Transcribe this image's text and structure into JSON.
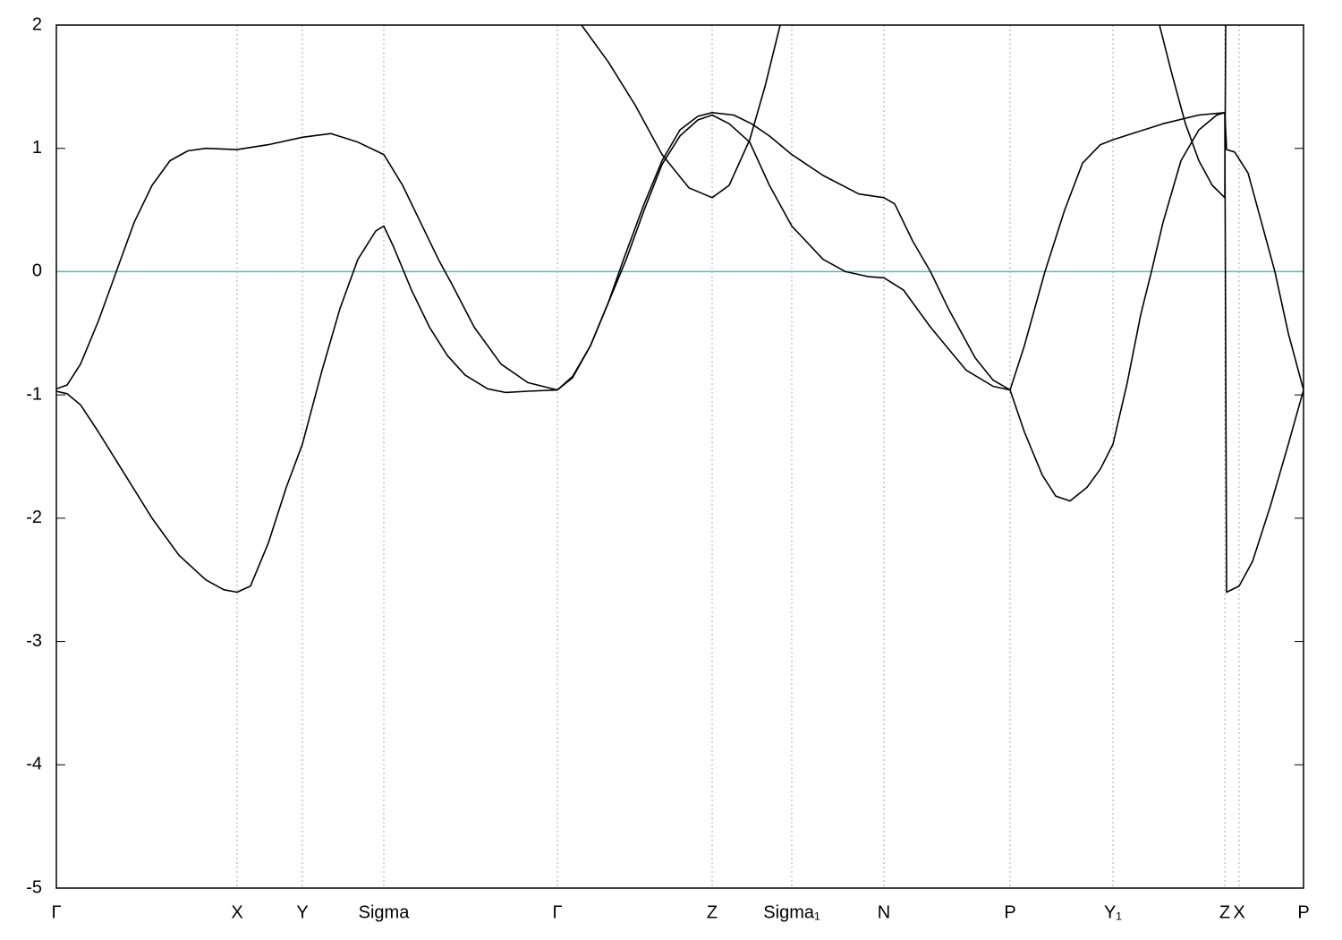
{
  "chart_data": {
    "type": "line",
    "xlim": [
      0,
      1394
    ],
    "ylim": [
      -5,
      2
    ],
    "yticks": [
      -5,
      -4,
      -3,
      -2,
      -1,
      0,
      1,
      2
    ],
    "xticks": [
      {
        "value": 0,
        "label": "Γ"
      },
      {
        "value": 202,
        "label": "X"
      },
      {
        "value": 275,
        "label": "Y"
      },
      {
        "value": 366,
        "label": "Sigma"
      },
      {
        "value": 560,
        "label": "Γ"
      },
      {
        "value": 733,
        "label": "Z"
      },
      {
        "value": 822,
        "label": "Sigma₁"
      },
      {
        "value": 925,
        "label": "N"
      },
      {
        "value": 1066,
        "label": "P"
      },
      {
        "value": 1181,
        "label": "Y₁"
      },
      {
        "value": 1306,
        "label": "Z"
      },
      {
        "value": 1322,
        "label": "X"
      },
      {
        "value": 1394,
        "label": "P"
      }
    ],
    "grid": true,
    "hline": {
      "value": 0,
      "color": "#5bb5c8"
    },
    "series": [
      {
        "color": "#000000",
        "x": [
          0,
          12,
          27,
          47,
          77,
          107,
          137,
          167,
          187,
          202,
          217,
          237,
          257,
          275,
          297,
          317,
          337,
          357,
          366,
          377,
          397,
          417,
          437,
          457,
          482,
          502,
          527,
          560,
          577,
          597,
          617,
          637,
          657,
          677,
          697,
          717,
          733,
          752,
          775,
          797,
          822,
          857,
          882,
          907,
          925,
          947,
          977,
          1017,
          1047,
          1066,
          1082,
          1102,
          1117,
          1133,
          1152,
          1167,
          1181,
          1197,
          1212,
          1224,
          1237,
          1257,
          1277,
          1297,
          1306,
          1308,
          1322,
          1337,
          1357,
          1377,
          1394
        ],
        "values": [
          -0.97,
          -0.99,
          -1.08,
          -1.3,
          -1.65,
          -2.0,
          -2.3,
          -2.5,
          -2.58,
          -2.6,
          -2.55,
          -2.2,
          -1.75,
          -1.4,
          -0.8,
          -0.3,
          0.1,
          0.33,
          0.37,
          0.2,
          -0.15,
          -0.45,
          -0.68,
          -0.84,
          -0.95,
          -0.98,
          -0.97,
          -0.96,
          -0.85,
          -0.6,
          -0.25,
          0.1,
          0.5,
          0.87,
          1.1,
          1.23,
          1.27,
          1.2,
          1.05,
          0.7,
          0.37,
          0.1,
          0,
          -0.04,
          -0.05,
          -0.15,
          -0.45,
          -0.8,
          -0.93,
          -0.96,
          -1.3,
          -1.65,
          -1.82,
          -1.86,
          -1.75,
          -1.6,
          -1.4,
          -0.9,
          -0.35,
          0,
          0.4,
          0.9,
          1.15,
          1.27,
          1.29,
          -2.6,
          -2.55,
          -2.35,
          -1.9,
          -1.4,
          -0.96
        ]
      },
      {
        "color": "#000000",
        "x": [
          0,
          12,
          27,
          47,
          67,
          87,
          107,
          127,
          147,
          167,
          202,
          237,
          275,
          307,
          337,
          366,
          387,
          407,
          427,
          442,
          467,
          497,
          527,
          560,
          577,
          597,
          617,
          634,
          657,
          677,
          697,
          717,
          733,
          757,
          777,
          797,
          822,
          857,
          897,
          925,
          937,
          957,
          977,
          997,
          1027,
          1047,
          1066,
          1082,
          1105,
          1127,
          1147,
          1167,
          1181,
          1207,
          1237,
          1277,
          1306,
          1308,
          1317,
          1332,
          1347,
          1362,
          1377,
          1394
        ],
        "values": [
          -0.95,
          -0.92,
          -0.75,
          -0.4,
          0,
          0.4,
          0.7,
          0.9,
          0.98,
          1.0,
          0.99,
          1.03,
          1.09,
          1.12,
          1.05,
          0.95,
          0.7,
          0.4,
          0.1,
          -0.1,
          -0.45,
          -0.75,
          -0.9,
          -0.96,
          -0.86,
          -0.6,
          -0.25,
          0.1,
          0.55,
          0.9,
          1.15,
          1.26,
          1.29,
          1.27,
          1.2,
          1.1,
          0.95,
          0.78,
          0.63,
          0.6,
          0.55,
          0.25,
          0,
          -0.3,
          -0.7,
          -0.88,
          -0.96,
          -0.6,
          0,
          0.5,
          0.88,
          1.03,
          1.07,
          1.13,
          1.2,
          1.27,
          1.29,
          0.99,
          0.97,
          0.8,
          0.4,
          0,
          -0.5,
          -0.96
        ]
      },
      {
        "color": "#000000",
        "x": [
          587,
          617,
          647,
          677,
          707,
          733,
          752,
          775,
          792,
          809,
          1000,
          1233,
          1247,
          1262,
          1277,
          1292,
          1306,
          1307
        ],
        "values": [
          2,
          1.7,
          1.35,
          0.95,
          0.68,
          0.6,
          0.7,
          1.07,
          1.5,
          2,
          null,
          2,
          1.6,
          1.2,
          0.9,
          0.7,
          0.6,
          2
        ]
      }
    ]
  }
}
